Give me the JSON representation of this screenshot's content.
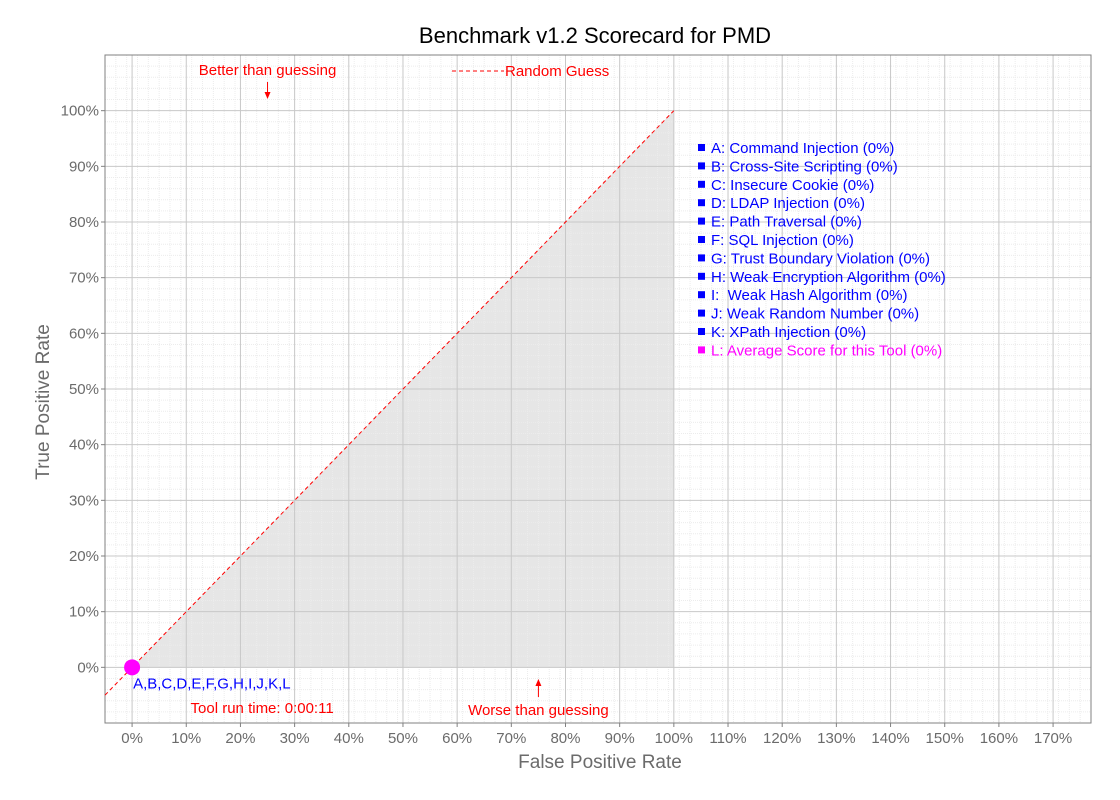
{
  "chart_data": {
    "type": "scatter",
    "title": "Benchmark v1.2 Scorecard for PMD",
    "xlabel": "False Positive Rate",
    "ylabel": "True Positive Rate",
    "xlim": [
      -5,
      177
    ],
    "ylim": [
      -10,
      110
    ],
    "x_ticks": [
      "0%",
      "10%",
      "20%",
      "30%",
      "40%",
      "50%",
      "60%",
      "70%",
      "80%",
      "90%",
      "100%",
      "110%",
      "120%",
      "130%",
      "140%",
      "150%",
      "160%",
      "170%"
    ],
    "y_ticks": [
      "0%",
      "10%",
      "20%",
      "30%",
      "40%",
      "50%",
      "60%",
      "70%",
      "80%",
      "90%",
      "100%"
    ],
    "grid": true,
    "shaded_region": "below the random-guess diagonal from 0% to 100% false positive rate",
    "random_guess": {
      "label": "Random Guess",
      "from": [
        -5,
        -5
      ],
      "to": [
        100,
        100
      ],
      "color": "#ff0000"
    },
    "legend_position": "right",
    "series": [
      {
        "name": "A: Command Injection (0%)",
        "color": "#0000ff"
      },
      {
        "name": "B: Cross-Site Scripting (0%)",
        "color": "#0000ff"
      },
      {
        "name": "C: Insecure Cookie (0%)",
        "color": "#0000ff"
      },
      {
        "name": "D: LDAP Injection (0%)",
        "color": "#0000ff"
      },
      {
        "name": "E: Path Traversal (0%)",
        "color": "#0000ff"
      },
      {
        "name": "F: SQL Injection (0%)",
        "color": "#0000ff"
      },
      {
        "name": "G: Trust Boundary Violation (0%)",
        "color": "#0000ff"
      },
      {
        "name": "H: Weak Encryption Algorithm (0%)",
        "color": "#0000ff"
      },
      {
        "name": "I:  Weak Hash Algorithm (0%)",
        "color": "#0000ff"
      },
      {
        "name": "J: Weak Random Number (0%)",
        "color": "#0000ff"
      },
      {
        "name": "K: XPath Injection (0%)",
        "color": "#0000ff"
      },
      {
        "name": "L: Average Score for this Tool (0%)",
        "color": "#ff00ff"
      }
    ],
    "points": [
      {
        "x": 0,
        "y": 0,
        "label": "A,B,C,D,E,F,G,H,I,J,K,L",
        "color": "#ff00ff"
      }
    ],
    "annotations": {
      "better": {
        "text": "Better than guessing",
        "arrow_x": 25,
        "arrow_y": 103
      },
      "worse": {
        "text": "Worse than guessing",
        "arrow_x": 75,
        "arrow_y": -3
      },
      "runtime": {
        "text": "Tool run time: 0:00:11",
        "x": 24,
        "y": -7.5
      }
    }
  }
}
